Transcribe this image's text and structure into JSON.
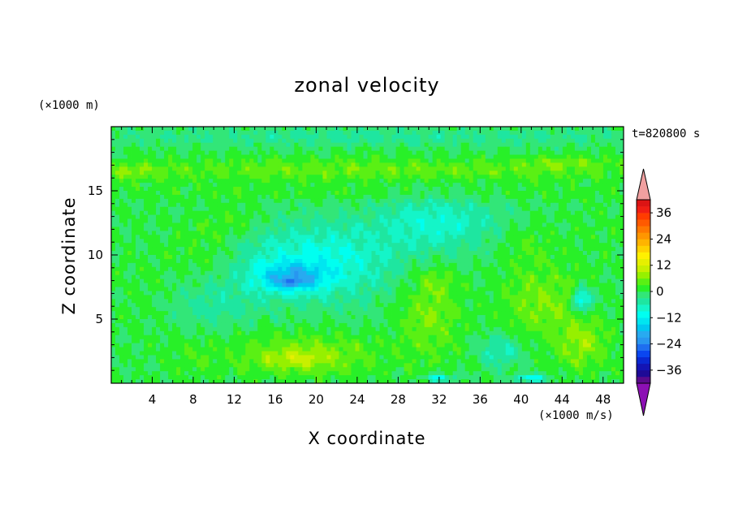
{
  "chart_data": {
    "type": "heatmap",
    "title": "zonal velocity",
    "xlabel": "X coordinate",
    "ylabel": "Z coordinate",
    "x_unit": "(×1000 m/s)",
    "y_unit": "(×1000 m)",
    "time_label": "t=820800 s",
    "xlim": [
      0,
      50
    ],
    "ylim": [
      0,
      20
    ],
    "x_ticks": [
      4,
      8,
      12,
      16,
      20,
      24,
      28,
      32,
      36,
      40,
      44,
      48
    ],
    "y_ticks": [
      5,
      10,
      15
    ],
    "colorbar": {
      "ticks": [
        36,
        24,
        12,
        0,
        -12,
        -24,
        -36
      ],
      "levels": [
        -42,
        -39,
        -36,
        -33,
        -30,
        -27,
        -24,
        -21,
        -18,
        -15,
        -12,
        -9,
        -6,
        -3,
        0,
        3,
        6,
        9,
        12,
        15,
        18,
        21,
        24,
        27,
        30,
        33,
        36,
        39,
        42
      ],
      "colors": [
        "#5a0a8c",
        "#1e0a96",
        "#1414b4",
        "#0a28d2",
        "#0a46f0",
        "#1e6ef0",
        "#2896f0",
        "#28aaf0",
        "#00c8f0",
        "#00e6f0",
        "#00fff0",
        "#14f5c8",
        "#1ee6a0",
        "#32e678",
        "#28f028",
        "#5af014",
        "#96f000",
        "#c8f000",
        "#e6f000",
        "#fff000",
        "#ffd200",
        "#ffb400",
        "#ff9600",
        "#ff7800",
        "#ff5a00",
        "#ff3c00",
        "#f01e14",
        "#dc1414"
      ],
      "over_color": "#f0a0a0",
      "under_color": "#8c10b4"
    },
    "field": {
      "background": 0,
      "features": [
        {
          "x": 25,
          "y": 19.2,
          "sx": 30,
          "sy": 0.7,
          "v": -4
        },
        {
          "x": 25,
          "y": 16.6,
          "sx": 30,
          "sy": 0.9,
          "v": 5
        },
        {
          "x": 44,
          "y": 17.2,
          "sx": 4,
          "sy": 0.5,
          "v": 4
        },
        {
          "x": 2,
          "y": 16.5,
          "sx": 2.5,
          "sy": 0.6,
          "v": 4
        },
        {
          "x": 25,
          "y": 14.8,
          "sx": 30,
          "sy": 0.6,
          "v": 2
        },
        {
          "x": 20,
          "y": 9.5,
          "sx": 8,
          "sy": 3,
          "v": -10
        },
        {
          "x": 32,
          "y": 12.5,
          "sx": 6,
          "sy": 2.2,
          "v": -8
        },
        {
          "x": 17.5,
          "y": 8.2,
          "sx": 3.5,
          "sy": 1.1,
          "v": -13
        },
        {
          "x": 17.5,
          "y": 7.8,
          "sx": 1,
          "sy": 0.3,
          "v": -8
        },
        {
          "x": 9,
          "y": 10.5,
          "sx": 3.5,
          "sy": 2,
          "v": 3
        },
        {
          "x": 12,
          "y": 12.5,
          "sx": 3,
          "sy": 1.3,
          "v": 3
        },
        {
          "x": 3,
          "y": 7,
          "sx": 3,
          "sy": 4,
          "v": 1
        },
        {
          "x": 19,
          "y": 2.2,
          "sx": 7,
          "sy": 1.6,
          "v": 7
        },
        {
          "x": 18,
          "y": 1.8,
          "sx": 3,
          "sy": 0.6,
          "v": 4
        },
        {
          "x": 31,
          "y": 5.5,
          "sx": 3,
          "sy": 3.5,
          "v": 6
        },
        {
          "x": 32,
          "y": 8,
          "sx": 1.5,
          "sy": 1,
          "v": 3
        },
        {
          "x": 42,
          "y": 6.5,
          "sx": 4,
          "sy": 3,
          "v": 6
        },
        {
          "x": 46,
          "y": 3,
          "sx": 2.5,
          "sy": 2,
          "v": 7
        },
        {
          "x": 40.5,
          "y": 11,
          "sx": 2.5,
          "sy": 1.5,
          "v": 3
        },
        {
          "x": 46,
          "y": 6.5,
          "sx": 0.9,
          "sy": 0.9,
          "v": -14
        },
        {
          "x": 8,
          "y": 2,
          "sx": 3,
          "sy": 1.5,
          "v": 2
        },
        {
          "x": 32,
          "y": 0.4,
          "sx": 1.5,
          "sy": 0.3,
          "v": -10
        },
        {
          "x": 41,
          "y": 0.4,
          "sx": 1.5,
          "sy": 0.3,
          "v": -12
        },
        {
          "x": 38,
          "y": 2.5,
          "sx": 2,
          "sy": 1.2,
          "v": -7
        },
        {
          "x": 10,
          "y": 6,
          "sx": 4,
          "sy": 1.6,
          "v": -4
        },
        {
          "x": 48,
          "y": 12,
          "sx": 3,
          "sy": 2,
          "v": 1
        }
      ]
    }
  }
}
